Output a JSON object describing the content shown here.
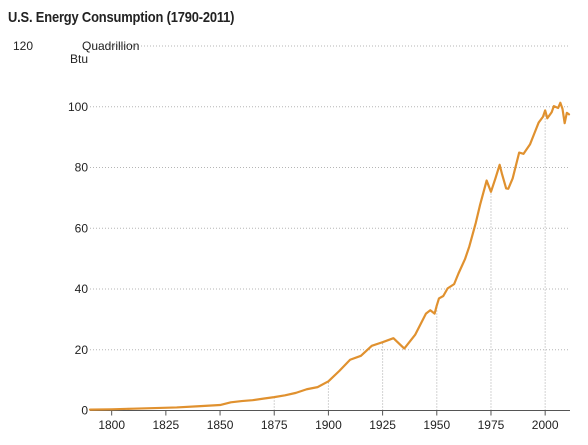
{
  "chart_data": {
    "type": "line",
    "title": "U.S. Energy Consumption (1790-2011)",
    "y_unit_label": [
      "Quadrillion",
      "Btu"
    ],
    "xlim": [
      1790,
      2011
    ],
    "ylim": [
      0,
      120
    ],
    "x_ticks": [
      1800,
      1825,
      1850,
      1875,
      1900,
      1925,
      1950,
      1975,
      2000
    ],
    "y_ticks": [
      0,
      20,
      40,
      60,
      80,
      100,
      120
    ],
    "dotted_reference_years": [
      1875,
      1900,
      1925,
      1950,
      1975,
      2000
    ],
    "grid": "horizontal dotted",
    "legend": "none",
    "line_color": "#e0912f",
    "series": [
      {
        "x": [
          1790,
          1800,
          1810,
          1820,
          1830,
          1840,
          1850,
          1855,
          1860,
          1865,
          1870,
          1875,
          1880,
          1885,
          1890,
          1895,
          1900,
          1905,
          1910,
          1915,
          1920,
          1925,
          1930,
          1935,
          1940,
          1945,
          1947,
          1949,
          1950,
          1951,
          1953,
          1955,
          1958,
          1960,
          1963,
          1965,
          1968,
          1970,
          1973,
          1975,
          1977,
          1979,
          1980,
          1982,
          1983,
          1985,
          1988,
          1990,
          1993,
          1995,
          1997,
          1999,
          2000,
          2001,
          2003,
          2004,
          2006,
          2007,
          2008,
          2009,
          2010,
          2011
        ],
        "y": [
          0.3,
          0.4,
          0.6,
          0.8,
          1.0,
          1.4,
          1.8,
          2.7,
          3.1,
          3.4,
          3.9,
          4.4,
          5.0,
          5.8,
          7.0,
          7.7,
          9.6,
          13.0,
          16.7,
          18.0,
          21.3,
          22.5,
          23.8,
          20.4,
          24.9,
          31.9,
          33.0,
          31.9,
          34.6,
          36.9,
          37.7,
          40.2,
          41.6,
          45.1,
          49.8,
          54.0,
          61.8,
          67.8,
          75.7,
          72.0,
          76.3,
          80.9,
          78.1,
          73.1,
          73.0,
          76.4,
          84.9,
          84.5,
          87.6,
          91.2,
          94.8,
          96.7,
          98.8,
          96.2,
          98.2,
          100.2,
          99.6,
          101.3,
          99.3,
          94.6,
          98.0,
          97.5
        ]
      }
    ]
  }
}
